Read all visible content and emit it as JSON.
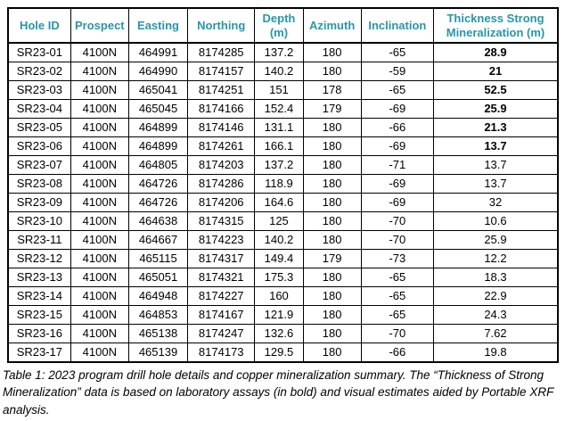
{
  "colors": {
    "header_text": "#2796A9",
    "border": "#000000",
    "body_text": "#000000",
    "background": "#FFFFFF"
  },
  "table": {
    "columns": [
      "Hole ID",
      "Prospect",
      "Easting",
      "Northing",
      "Depth (m)",
      "Azimuth",
      "Inclination",
      "Thickness Strong Mineralization (m)"
    ],
    "rows": [
      {
        "hole_id": "SR23-01",
        "prospect": "4100N",
        "easting": "464991",
        "northing": "8174285",
        "depth": "137.2",
        "azimuth": "180",
        "inclination": "-65",
        "thickness": "28.9",
        "thickness_bold": true
      },
      {
        "hole_id": "SR23-02",
        "prospect": "4100N",
        "easting": "464990",
        "northing": "8174157",
        "depth": "140.2",
        "azimuth": "180",
        "inclination": "-59",
        "thickness": "21",
        "thickness_bold": true
      },
      {
        "hole_id": "SR23-03",
        "prospect": "4100N",
        "easting": "465041",
        "northing": "8174251",
        "depth": "151",
        "azimuth": "178",
        "inclination": "-65",
        "thickness": "52.5",
        "thickness_bold": true
      },
      {
        "hole_id": "SR23-04",
        "prospect": "4100N",
        "easting": "465045",
        "northing": "8174166",
        "depth": "152.4",
        "azimuth": "179",
        "inclination": "-69",
        "thickness": "25.9",
        "thickness_bold": true
      },
      {
        "hole_id": "SR23-05",
        "prospect": "4100N",
        "easting": "464899",
        "northing": "8174146",
        "depth": "131.1",
        "azimuth": "180",
        "inclination": "-66",
        "thickness": "21.3",
        "thickness_bold": true
      },
      {
        "hole_id": "SR23-06",
        "prospect": "4100N",
        "easting": "464899",
        "northing": "8174261",
        "depth": "166.1",
        "azimuth": "180",
        "inclination": "-69",
        "thickness": "13.7",
        "thickness_bold": true
      },
      {
        "hole_id": "SR23-07",
        "prospect": "4100N",
        "easting": "464805",
        "northing": "8174203",
        "depth": "137.2",
        "azimuth": "180",
        "inclination": "-71",
        "thickness": "13.7",
        "thickness_bold": false
      },
      {
        "hole_id": "SR23-08",
        "prospect": "4100N",
        "easting": "464726",
        "northing": "8174286",
        "depth": "118.9",
        "azimuth": "180",
        "inclination": "-69",
        "thickness": "13.7",
        "thickness_bold": false
      },
      {
        "hole_id": "SR23-09",
        "prospect": "4100N",
        "easting": "464726",
        "northing": "8174206",
        "depth": "164.6",
        "azimuth": "180",
        "inclination": "-69",
        "thickness": "32",
        "thickness_bold": false
      },
      {
        "hole_id": "SR23-10",
        "prospect": "4100N",
        "easting": "464638",
        "northing": "8174315",
        "depth": "125",
        "azimuth": "180",
        "inclination": "-70",
        "thickness": "10.6",
        "thickness_bold": false
      },
      {
        "hole_id": "SR23-11",
        "prospect": "4100N",
        "easting": "464667",
        "northing": "8174223",
        "depth": "140.2",
        "azimuth": "180",
        "inclination": "-70",
        "thickness": "25.9",
        "thickness_bold": false
      },
      {
        "hole_id": "SR23-12",
        "prospect": "4100N",
        "easting": "465115",
        "northing": "8174317",
        "depth": "149.4",
        "azimuth": "179",
        "inclination": "-73",
        "thickness": "12.2",
        "thickness_bold": false
      },
      {
        "hole_id": "SR23-13",
        "prospect": "4100N",
        "easting": "465051",
        "northing": "8174321",
        "depth": "175.3",
        "azimuth": "180",
        "inclination": "-65",
        "thickness": "18.3",
        "thickness_bold": false
      },
      {
        "hole_id": "SR23-14",
        "prospect": "4100N",
        "easting": "464948",
        "northing": "8174227",
        "depth": "160",
        "azimuth": "180",
        "inclination": "-65",
        "thickness": "22.9",
        "thickness_bold": false
      },
      {
        "hole_id": "SR23-15",
        "prospect": "4100N",
        "easting": "464853",
        "northing": "8174167",
        "depth": "121.9",
        "azimuth": "180",
        "inclination": "-65",
        "thickness": "24.3",
        "thickness_bold": false
      },
      {
        "hole_id": "SR23-16",
        "prospect": "4100N",
        "easting": "465138",
        "northing": "8174247",
        "depth": "132.6",
        "azimuth": "180",
        "inclination": "-70",
        "thickness": "7.62",
        "thickness_bold": false
      },
      {
        "hole_id": "SR23-17",
        "prospect": "4100N",
        "easting": "465139",
        "northing": "8174173",
        "depth": "129.5",
        "azimuth": "180",
        "inclination": "-66",
        "thickness": "19.8",
        "thickness_bold": false
      }
    ]
  },
  "caption": "Table 1: 2023 program drill hole details and copper mineralization summary. The “Thickness of Strong Mineralization” data is based on laboratory assays (in bold) and visual estimates aided by Portable XRF analysis."
}
